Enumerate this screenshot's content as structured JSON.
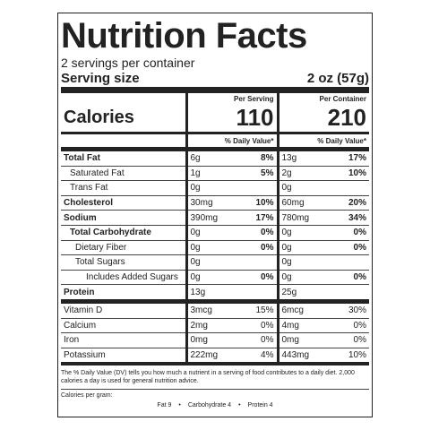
{
  "title": "Nutrition Facts",
  "servings": "2 servings per container",
  "serving_size": {
    "label": "Serving size",
    "value": "2 oz (57g)"
  },
  "columns": [
    "Per Serving",
    "Per Container"
  ],
  "calories": {
    "label": "Calories",
    "per_serving": "110",
    "per_container": "210"
  },
  "daily_value_header": "% Daily Value*",
  "nutrients": [
    {
      "label": "Total Fat",
      "serving": "6g",
      "serving_dv": "8%",
      "container": "13g",
      "container_dv": "17%"
    },
    {
      "label": "Saturated Fat",
      "serving": "1g",
      "serving_dv": "5%",
      "container": "2g",
      "container_dv": "10%"
    },
    {
      "label": "Trans Fat",
      "serving": "0g",
      "container": "0g"
    },
    {
      "label": "Cholesterol",
      "serving": "30mg",
      "serving_dv": "10%",
      "container": "60mg",
      "container_dv": "20%"
    },
    {
      "label": "Sodium",
      "serving": "390mg",
      "serving_dv": "17%",
      "container": "780mg",
      "container_dv": "34%"
    },
    {
      "label": "Total Carbohydrate",
      "serving": "0g",
      "serving_dv": "0%",
      "container": "0g",
      "container_dv": "0%"
    },
    {
      "label": "Dietary Fiber",
      "serving": "0g",
      "serving_dv": "0%",
      "container": "0g",
      "container_dv": "0%"
    },
    {
      "label": "Total Sugars",
      "serving": "0g",
      "container": "0g"
    },
    {
      "label": "Includes Added Sugars",
      "serving": "0g",
      "serving_dv": "0%",
      "container": "0g",
      "container_dv": "0%"
    },
    {
      "label": "Protein",
      "serving": "13g",
      "container": "25g"
    }
  ],
  "vitamins": [
    {
      "label": "Vitamin D",
      "serving": "3mcg",
      "serving_dv": "15%",
      "container": "6mcg",
      "container_dv": "30%"
    },
    {
      "label": "Calcium",
      "serving": "2mg",
      "serving_dv": "0%",
      "container": "4mg",
      "container_dv": "0%"
    },
    {
      "label": "Iron",
      "serving": "0mg",
      "serving_dv": "0%",
      "container": "0mg",
      "container_dv": "0%"
    },
    {
      "label": "Potassium",
      "serving": "222mg",
      "serving_dv": "4%",
      "container": "443mg",
      "container_dv": "10%"
    }
  ],
  "footnote": "The % Daily Value (DV) tells you how much a nutrient in a serving of food contributes to a daily diet. 2,000 calories a day is used for general nutrition advice.",
  "calories_per_gram": {
    "label": "Calories per gram:",
    "values": [
      "Fat 9",
      "Carbohydrate 4",
      "Protein 4"
    ]
  }
}
